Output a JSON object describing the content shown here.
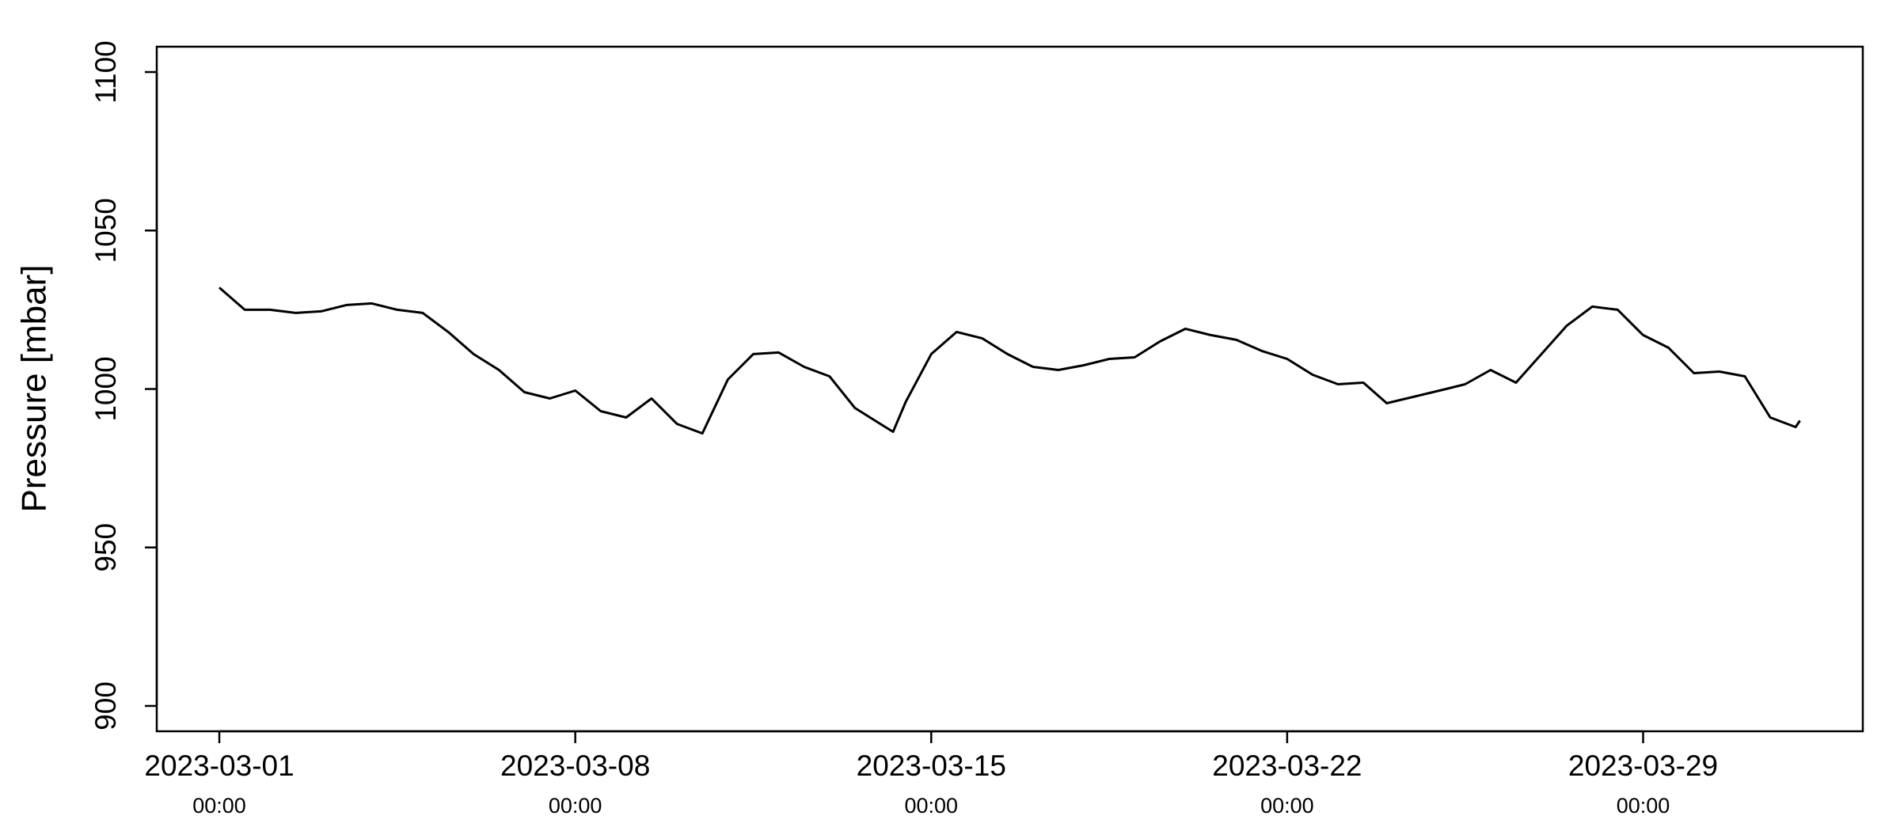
{
  "chart_data": {
    "type": "line",
    "ylabel": "Pressure [mbar]",
    "xlim": [
      "2023-02-27 18:28",
      "2023-04-02 07:41"
    ],
    "xticks": [
      {
        "value": "2023-03-01 00:00",
        "label": [
          "2023-03-01",
          "00:00"
        ]
      },
      {
        "value": "2023-03-08 00:00",
        "label": [
          "2023-03-08",
          "00:00"
        ]
      },
      {
        "value": "2023-03-15 00:00",
        "label": [
          "2023-03-15",
          "00:00"
        ]
      },
      {
        "value": "2023-03-22 00:00",
        "label": [
          "2023-03-22",
          "00:00"
        ]
      },
      {
        "value": "2023-03-29 00:00",
        "label": [
          "2023-03-29",
          "00:00"
        ]
      }
    ],
    "ylim": [
      892,
      1108
    ],
    "yticks": [
      900,
      950,
      1000,
      1050,
      1100
    ],
    "x": [
      "2023-03-01 00:00",
      "2023-03-01 12:00",
      "2023-03-02 00:00",
      "2023-03-02 12:00",
      "2023-03-03 00:00",
      "2023-03-03 12:00",
      "2023-03-04 00:00",
      "2023-03-04 12:00",
      "2023-03-05 00:00",
      "2023-03-05 12:00",
      "2023-03-06 00:00",
      "2023-03-06 12:00",
      "2023-03-07 00:00",
      "2023-03-07 12:00",
      "2023-03-08 00:00",
      "2023-03-08 12:00",
      "2023-03-09 00:00",
      "2023-03-09 12:00",
      "2023-03-10 00:00",
      "2023-03-10 12:00",
      "2023-03-11 00:00",
      "2023-03-11 12:00",
      "2023-03-12 00:00",
      "2023-03-12 12:00",
      "2023-03-13 00:00",
      "2023-03-13 12:00",
      "2023-03-14 00:00",
      "2023-03-14 06:00",
      "2023-03-14 12:00",
      "2023-03-15 00:00",
      "2023-03-15 12:00",
      "2023-03-16 00:00",
      "2023-03-16 12:00",
      "2023-03-17 00:00",
      "2023-03-17 12:00",
      "2023-03-18 00:00",
      "2023-03-18 12:00",
      "2023-03-19 00:00",
      "2023-03-19 12:00",
      "2023-03-20 00:00",
      "2023-03-20 12:00",
      "2023-03-21 00:00",
      "2023-03-21 12:00",
      "2023-03-22 00:00",
      "2023-03-22 12:00",
      "2023-03-23 00:00",
      "2023-03-23 12:00",
      "2023-03-23 23:00",
      "2023-03-25 03:00",
      "2023-03-25 12:00",
      "2023-03-26 00:00",
      "2023-03-26 12:00",
      "2023-03-27 00:00",
      "2023-03-27 12:00",
      "2023-03-28 00:00",
      "2023-03-28 12:00",
      "2023-03-29 00:00",
      "2023-03-29 12:00",
      "2023-03-30 00:00",
      "2023-03-30 12:00",
      "2023-03-31 00:00",
      "2023-03-31 12:00",
      "2023-04-01 00:00",
      "2023-04-01 02:00"
    ],
    "series": [
      {
        "color": "#000000",
        "values": [
          1032,
          1025,
          1025,
          1024,
          1024.5,
          1026.5,
          1027,
          1025,
          1024,
          1018,
          1011,
          1006,
          999,
          997,
          999.5,
          993,
          991,
          997,
          989,
          986,
          1003,
          1011,
          1011.5,
          1007,
          1004,
          994,
          989,
          986.5,
          996,
          1011,
          1018,
          1016,
          1011,
          1007,
          1006,
          1007.5,
          1009.5,
          1010,
          1015,
          1019,
          1017,
          1015.5,
          1012,
          1009.5,
          1004.5,
          1001.5,
          1002,
          995.5,
          1000,
          1001.5,
          1006,
          1002,
          1011,
          1020,
          1026,
          1025,
          1017,
          1013,
          1005,
          1005.5,
          1004,
          991,
          988,
          990
        ]
      }
    ]
  }
}
